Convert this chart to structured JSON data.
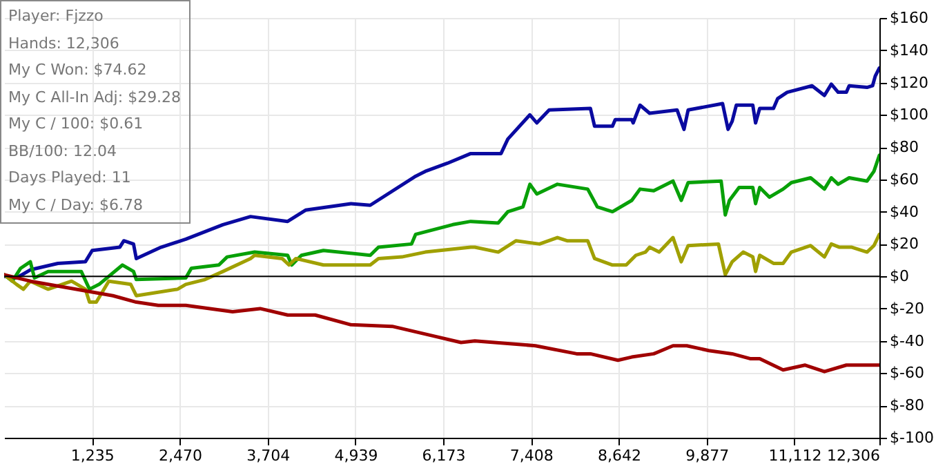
{
  "chart_data": {
    "type": "line",
    "annotations": [
      "Player: Fjzzo",
      "Hands: 12,306",
      "My C Won: $74.62",
      "My C All-In Adj: $29.28",
      "My C / 100: $0.61",
      "BB/100: 12.04",
      "Days Played: 11",
      "My C / Day: $6.78"
    ],
    "xlim": [
      0,
      12306
    ],
    "xticks": [
      {
        "value": 1235,
        "label": "1,235"
      },
      {
        "value": 2470,
        "label": "2,470"
      },
      {
        "value": 3704,
        "label": "3,704"
      },
      {
        "value": 4939,
        "label": "4,939"
      },
      {
        "value": 6173,
        "label": "6,173"
      },
      {
        "value": 7408,
        "label": "7,408"
      },
      {
        "value": 8642,
        "label": "8,642"
      },
      {
        "value": 9877,
        "label": "9,877"
      },
      {
        "value": 11112,
        "label": "11,112"
      },
      {
        "value": 12306,
        "label": "12,306"
      }
    ],
    "ylim": [
      -100,
      160
    ],
    "yticks": [
      {
        "value": -100,
        "label": "$-100"
      },
      {
        "value": -80,
        "label": "$-80"
      },
      {
        "value": -60,
        "label": "$-60"
      },
      {
        "value": -40,
        "label": "$-40"
      },
      {
        "value": -20,
        "label": "$-20"
      },
      {
        "value": 0,
        "label": "$0"
      },
      {
        "value": 20,
        "label": "$20"
      },
      {
        "value": 40,
        "label": "$40"
      },
      {
        "value": 60,
        "label": "$60"
      },
      {
        "value": 80,
        "label": "$80"
      },
      {
        "value": 100,
        "label": "$100"
      },
      {
        "value": 120,
        "label": "$120"
      },
      {
        "value": 140,
        "label": "$140"
      },
      {
        "value": 160,
        "label": "$160"
      }
    ],
    "grid": true,
    "legend": false,
    "marker": "none",
    "line_style": "solid",
    "ref_lines": [
      {
        "axis": "y",
        "value": 0,
        "color": "#000000"
      }
    ],
    "series": [
      {
        "color": "#0a0aa0",
        "x": [
          0,
          174,
          368,
          755,
          1142,
          1238,
          1625,
          1683,
          1819,
          1858,
          2206,
          2554,
          3077,
          3464,
          3986,
          4238,
          4876,
          5147,
          5786,
          5921,
          6231,
          6560,
          6986,
          7082,
          7392,
          7489,
          7663,
          8243,
          8301,
          8553,
          8592,
          8824,
          8844,
          8940,
          9075,
          9462,
          9559,
          9617,
          10101,
          10178,
          10236,
          10294,
          10526,
          10565,
          10623,
          10817,
          10875,
          11010,
          11359,
          11533,
          11630,
          11726,
          11842,
          11881,
          12132,
          12210,
          12248,
          12306
        ],
        "values": [
          0,
          -1,
          4,
          8,
          9,
          16,
          18,
          22,
          20,
          11,
          18,
          23,
          32,
          37,
          34,
          41,
          45,
          44,
          62,
          65,
          70,
          76,
          76,
          85,
          100,
          95,
          103,
          104,
          93,
          93,
          97,
          97,
          95,
          106,
          101,
          103,
          91,
          103,
          107,
          91,
          96,
          106,
          106,
          95,
          104,
          104,
          110,
          114,
          118,
          112,
          119,
          114,
          114,
          118,
          117,
          118,
          124,
          129
        ]
      },
      {
        "color": "#08a008",
        "x": [
          0,
          116,
          232,
          368,
          426,
          619,
          1084,
          1200,
          1335,
          1664,
          1819,
          1858,
          2554,
          2632,
          3019,
          3135,
          3522,
          3986,
          4044,
          4180,
          4489,
          5147,
          5263,
          5728,
          5786,
          6308,
          6560,
          6947,
          7082,
          7295,
          7392,
          7489,
          7779,
          8205,
          8340,
          8553,
          8824,
          8940,
          9133,
          9404,
          9520,
          9617,
          10081,
          10139,
          10197,
          10333,
          10526,
          10565,
          10623,
          10759,
          10952,
          11068,
          11339,
          11533,
          11630,
          11726,
          11881,
          12132,
          12229,
          12306
        ],
        "values": [
          1,
          -3,
          5,
          9,
          -1,
          3,
          3,
          -8,
          -5,
          7,
          3,
          -2,
          -1,
          5,
          7,
          12,
          15,
          13,
          7,
          13,
          16,
          13,
          18,
          20,
          26,
          32,
          34,
          33,
          40,
          43,
          57,
          51,
          57,
          54,
          43,
          40,
          47,
          54,
          53,
          59,
          47,
          58,
          59,
          38,
          47,
          55,
          55,
          45,
          55,
          49,
          54,
          58,
          61,
          54,
          61,
          57,
          61,
          59,
          65,
          75
        ]
      },
      {
        "color": "#a0a000",
        "x": [
          0,
          174,
          271,
          368,
          619,
          948,
          1142,
          1200,
          1296,
          1471,
          1780,
          1858,
          2438,
          2554,
          2825,
          3077,
          3464,
          3522,
          3909,
          4005,
          4102,
          4489,
          5147,
          5263,
          5592,
          5921,
          6560,
          6618,
          6947,
          7198,
          7527,
          7779,
          7914,
          8205,
          8301,
          8553,
          8746,
          8882,
          9017,
          9075,
          9210,
          9404,
          9520,
          9617,
          10043,
          10139,
          10236,
          10391,
          10526,
          10565,
          10623,
          10817,
          10952,
          11068,
          11339,
          11533,
          11630,
          11745,
          11919,
          12132,
          12229,
          12306
        ],
        "values": [
          1,
          -5,
          -8,
          -3,
          -8,
          -3,
          -8,
          -16,
          -16,
          -3,
          -5,
          -12,
          -8,
          -5,
          -2,
          3,
          11,
          13,
          11,
          7,
          11,
          7,
          7,
          11,
          12,
          15,
          18,
          18,
          15,
          22,
          20,
          24,
          22,
          22,
          11,
          7,
          7,
          13,
          15,
          18,
          15,
          24,
          9,
          19,
          20,
          1,
          9,
          15,
          12,
          3,
          13,
          8,
          8,
          15,
          19,
          12,
          20,
          18,
          18,
          15,
          19,
          26
        ]
      },
      {
        "color": "#a00000",
        "x": [
          0,
          368,
          755,
          1142,
          1529,
          1858,
          2167,
          2554,
          3212,
          3599,
          3986,
          4373,
          4876,
          5457,
          6037,
          6424,
          6618,
          7469,
          8050,
          8243,
          8630,
          8824,
          9133,
          9404,
          9598,
          9907,
          10236,
          10488,
          10623,
          10952,
          11262,
          11533,
          11842,
          12306
        ],
        "values": [
          1,
          -3,
          -6,
          -9,
          -12,
          -16,
          -18,
          -18,
          -22,
          -20,
          -24,
          -24,
          -30,
          -31,
          -37,
          -41,
          -40,
          -43,
          -48,
          -48,
          -52,
          -50,
          -48,
          -43,
          -43,
          -46,
          -48,
          -51,
          -51,
          -58,
          -55,
          -59,
          -55,
          -55
        ]
      }
    ]
  }
}
